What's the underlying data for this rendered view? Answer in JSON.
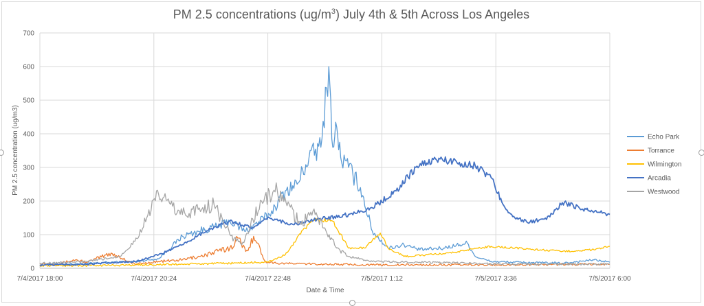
{
  "chart_data": {
    "type": "line",
    "title": "PM 2.5 concentrations (ug/m",
    "title_sup": "3",
    "title_rest": ") July 4th & 5th Across Los Angeles",
    "xlabel": "Date & Time",
    "ylabel": "PM 2.5 concentration (ug/m3)",
    "ylim": [
      0,
      700
    ],
    "yticks": [
      0,
      100,
      200,
      300,
      400,
      500,
      600,
      700
    ],
    "xlim_hours": [
      0,
      12
    ],
    "x_tick_labels": [
      "7/4/2017 18:00",
      "7/4/2017 20:24",
      "7/4/2017 22:48",
      "7/5/2017 1:12",
      "7/5/2017 3:36",
      "7/5/2017 6:00"
    ],
    "grid": true,
    "legend_position": "right",
    "series": [
      {
        "name": "Echo Park",
        "color": "#5b9bd5",
        "x": [
          "7/4/2017 18:00",
          "7/4/2017 18:30",
          "7/4/2017 19:00",
          "7/4/2017 19:30",
          "7/4/2017 20:00",
          "7/4/2017 20:30",
          "7/4/2017 21:00",
          "7/4/2017 21:20",
          "7/4/2017 21:45",
          "7/4/2017 22:00",
          "7/4/2017 22:20",
          "7/4/2017 22:50",
          "7/4/2017 23:10",
          "7/4/2017 23:25",
          "7/4/2017 23:40",
          "7/4/2017 23:55",
          "7/5/2017 0:05",
          "7/5/2017 0:10",
          "7/5/2017 0:15",
          "7/5/2017 0:20",
          "7/5/2017 0:30",
          "7/5/2017 0:45",
          "7/5/2017 1:00",
          "7/5/2017 1:20",
          "7/5/2017 1:40",
          "7/5/2017 2:00",
          "7/5/2017 2:30",
          "7/5/2017 3:00",
          "7/5/2017 3:10",
          "7/5/2017 3:30",
          "7/5/2017 4:00",
          "7/5/2017 5:00",
          "7/5/2017 5:40",
          "7/5/2017 6:00"
        ],
        "y": [
          15,
          12,
          14,
          18,
          20,
          28,
          95,
          110,
          125,
          140,
          110,
          160,
          230,
          250,
          330,
          360,
          600,
          360,
          420,
          330,
          300,
          240,
          110,
          60,
          70,
          55,
          60,
          75,
          35,
          20,
          18,
          15,
          25,
          18
        ]
      },
      {
        "name": "Torrance",
        "color": "#ed7d31",
        "x": [
          "7/4/2017 18:00",
          "7/4/2017 18:20",
          "7/4/2017 18:45",
          "7/4/2017 19:00",
          "7/4/2017 19:30",
          "7/4/2017 20:00",
          "7/4/2017 20:30",
          "7/4/2017 21:00",
          "7/4/2017 21:30",
          "7/4/2017 22:00",
          "7/4/2017 22:10",
          "7/4/2017 22:20",
          "7/4/2017 22:30",
          "7/4/2017 22:45",
          "7/4/2017 23:00",
          "7/5/2017 0:00",
          "7/5/2017 1:00",
          "7/5/2017 3:00",
          "7/5/2017 6:00"
        ],
        "y": [
          15,
          12,
          25,
          18,
          45,
          12,
          20,
          25,
          40,
          60,
          90,
          50,
          95,
          20,
          15,
          12,
          10,
          10,
          12
        ]
      },
      {
        "name": "Wilmington",
        "color": "#ffc000",
        "x": [
          "7/4/2017 18:00",
          "7/4/2017 19:00",
          "7/4/2017 20:00",
          "7/4/2017 21:00",
          "7/4/2017 22:00",
          "7/4/2017 22:48",
          "7/4/2017 23:10",
          "7/4/2017 23:35",
          "7/4/2017 23:50",
          "7/5/2017 0:10",
          "7/5/2017 0:30",
          "7/5/2017 0:50",
          "7/5/2017 1:10",
          "7/5/2017 1:20",
          "7/5/2017 1:40",
          "7/5/2017 2:10",
          "7/5/2017 2:40",
          "7/5/2017 3:00",
          "7/5/2017 3:30",
          "7/5/2017 4:00",
          "7/5/2017 5:00",
          "7/5/2017 5:40",
          "7/5/2017 6:00"
        ],
        "y": [
          8,
          8,
          10,
          12,
          15,
          18,
          40,
          120,
          145,
          140,
          60,
          60,
          105,
          60,
          35,
          40,
          45,
          55,
          65,
          60,
          50,
          55,
          65
        ]
      },
      {
        "name": "Arcadia",
        "color": "#4472c4",
        "x": [
          "7/4/2017 18:00",
          "7/4/2017 19:00",
          "7/4/2017 20:00",
          "7/4/2017 20:30",
          "7/4/2017 21:00",
          "7/4/2017 21:30",
          "7/4/2017 22:00",
          "7/4/2017 22:30",
          "7/4/2017 22:50",
          "7/4/2017 23:20",
          "7/4/2017 23:50",
          "7/5/2017 0:30",
          "7/5/2017 1:00",
          "7/5/2017 1:30",
          "7/5/2017 1:55",
          "7/5/2017 2:20",
          "7/5/2017 2:50",
          "7/5/2017 3:10",
          "7/5/2017 3:30",
          "7/5/2017 3:45",
          "7/5/2017 4:00",
          "7/5/2017 4:15",
          "7/5/2017 4:40",
          "7/5/2017 5:00",
          "7/5/2017 5:30",
          "7/5/2017 6:00"
        ],
        "y": [
          10,
          12,
          20,
          40,
          70,
          110,
          140,
          120,
          150,
          130,
          145,
          160,
          180,
          230,
          300,
          325,
          315,
          305,
          270,
          190,
          150,
          138,
          145,
          195,
          175,
          160
        ]
      },
      {
        "name": "Westwood",
        "color": "#a5a5a5",
        "x": [
          "7/4/2017 18:00",
          "7/4/2017 19:00",
          "7/4/2017 19:40",
          "7/4/2017 20:00",
          "7/4/2017 20:15",
          "7/4/2017 20:30",
          "7/4/2017 20:45",
          "7/4/2017 21:00",
          "7/4/2017 21:20",
          "7/4/2017 21:40",
          "7/4/2017 22:00",
          "7/4/2017 22:15",
          "7/4/2017 22:40",
          "7/4/2017 23:00",
          "7/4/2017 23:30",
          "7/4/2017 23:45",
          "7/5/2017 0:00",
          "7/5/2017 0:15",
          "7/5/2017 0:30",
          "7/5/2017 1:00",
          "7/5/2017 2:00",
          "7/5/2017 3:00",
          "7/5/2017 4:00",
          "7/5/2017 5:00",
          "7/5/2017 6:00"
        ],
        "y": [
          15,
          20,
          35,
          80,
          150,
          220,
          190,
          160,
          175,
          190,
          100,
          70,
          200,
          230,
          130,
          170,
          120,
          60,
          35,
          20,
          18,
          15,
          12,
          12,
          12
        ]
      }
    ]
  }
}
